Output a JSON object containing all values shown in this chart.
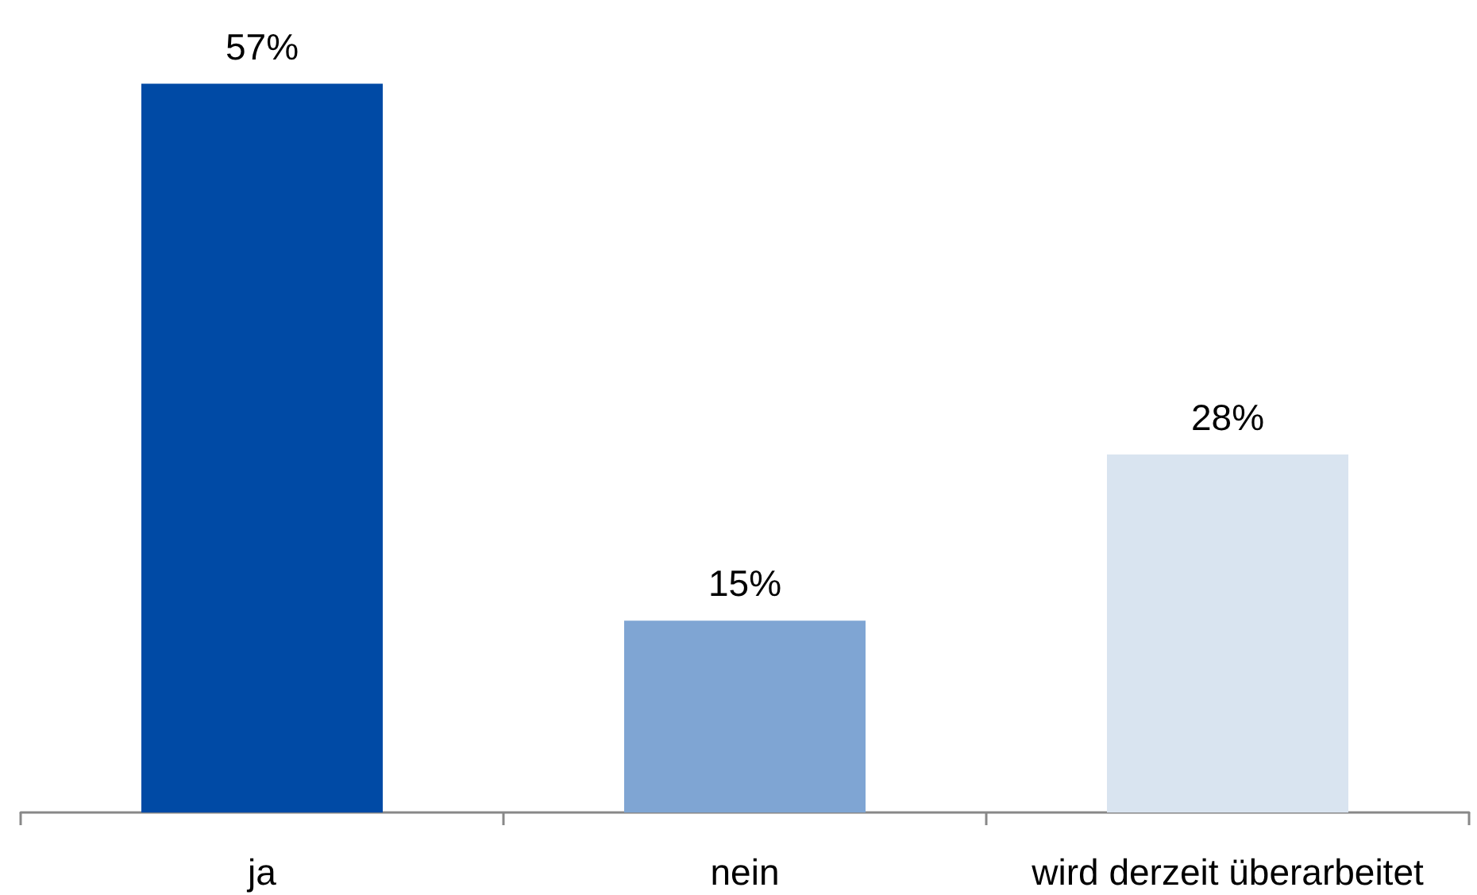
{
  "chart_data": {
    "type": "bar",
    "categories": [
      "ja",
      "nein",
      "wird derzeit überarbeitet"
    ],
    "values": [
      57,
      15,
      28
    ],
    "value_labels": [
      "57%",
      "15%",
      "28%"
    ],
    "colors": [
      "#004aa5",
      "#7fa5d3",
      "#d9e4f0"
    ]
  }
}
